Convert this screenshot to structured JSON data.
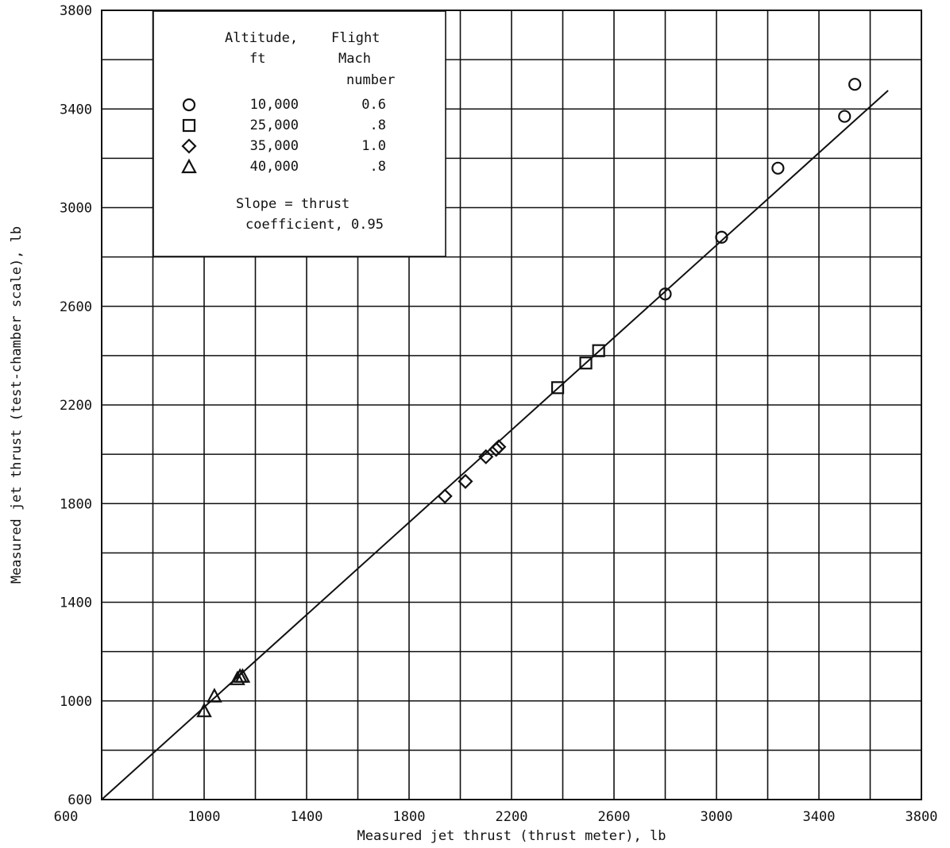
{
  "chart_data": {
    "type": "scatter",
    "title": "",
    "xlabel": "Measured jet thrust (thrust meter), lb",
    "ylabel": "Measured jet thrust (test-chamber scale), lb",
    "xlim": [
      600,
      3800
    ],
    "ylim": [
      600,
      3800
    ],
    "xticks": [
      1000,
      1400,
      1800,
      2200,
      2600,
      3000,
      3400,
      3800
    ],
    "yticks": [
      600,
      1000,
      1400,
      1800,
      2200,
      2600,
      3000,
      3400,
      3800
    ],
    "xtick_labels": [
      "1000",
      "1400",
      "1800",
      "2200",
      "2600",
      "3000",
      "3400",
      "3800"
    ],
    "ytick_labels": [
      "600",
      "1000",
      "1400",
      "1800",
      "2200",
      "2600",
      "3000",
      "3400",
      "3800"
    ],
    "grid": true,
    "legend": {
      "placement": "top-left",
      "header": {
        "altitude_line1": "Altitude,",
        "altitude_line2": "ft",
        "mach_line1": "Flight",
        "mach_line2": "Mach",
        "mach_line3": "number"
      },
      "note_line1": "Slope = thrust",
      "note_line2": "coefficient, 0.95"
    },
    "series": [
      {
        "marker": "circle",
        "altitude": "10,000",
        "mach": "0.6",
        "points": [
          [
            2800,
            2650
          ],
          [
            3020,
            2880
          ],
          [
            3240,
            3160
          ],
          [
            3500,
            3370
          ],
          [
            3540,
            3500
          ]
        ]
      },
      {
        "marker": "square",
        "altitude": "25,000",
        "mach": ".8",
        "points": [
          [
            2380,
            2270
          ],
          [
            2490,
            2370
          ],
          [
            2540,
            2420
          ]
        ]
      },
      {
        "marker": "diamond",
        "altitude": "35,000",
        "mach": "1.0",
        "points": [
          [
            1940,
            1830
          ],
          [
            2020,
            1890
          ],
          [
            2100,
            1990
          ],
          [
            2140,
            2020
          ],
          [
            2150,
            2030
          ]
        ]
      },
      {
        "marker": "triangle",
        "altitude": "40,000",
        "mach": ".8",
        "points": [
          [
            1000,
            960
          ],
          [
            1040,
            1020
          ],
          [
            1130,
            1090
          ],
          [
            1140,
            1100
          ],
          [
            1150,
            1100
          ]
        ]
      }
    ],
    "fit_line": {
      "slope": 0.95,
      "x": [
        600,
        3670
      ],
      "y": [
        600,
        3475
      ]
    }
  }
}
